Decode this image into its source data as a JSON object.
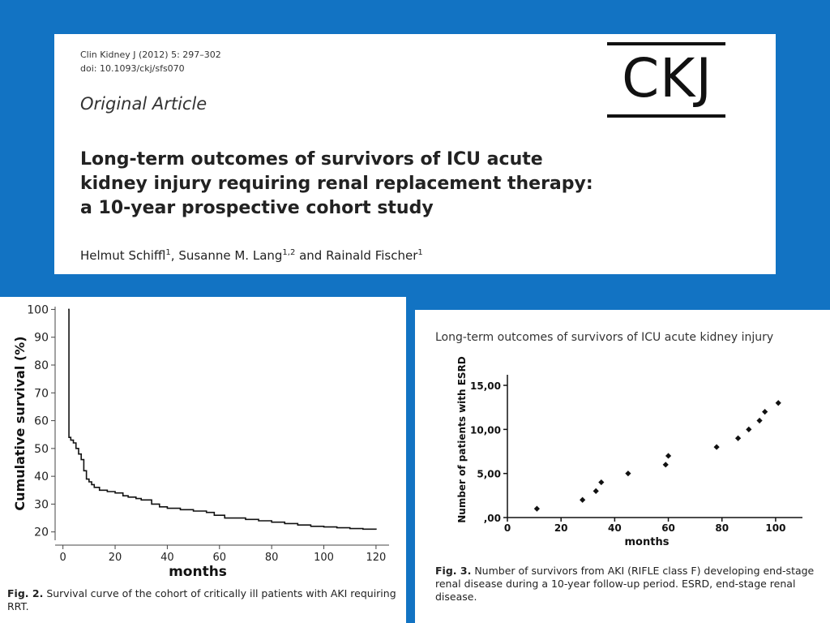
{
  "header": {
    "citation_line1": "Clin Kidney J (2012) 5: 297–302",
    "citation_line2": "doi: 10.1093/ckj/sfs070",
    "article_type": "Original Article",
    "title": "Long-term outcomes of survivors of ICU acute kidney injury requiring renal replacement therapy: a 10-year prospective cohort study",
    "authors": [
      {
        "name": "Helmut Schiffl",
        "aff": "1"
      },
      {
        "name": "Susanne M. Lang",
        "aff": "1,2"
      },
      {
        "name": "Rainald Fischer",
        "aff": "1"
      }
    ],
    "author_sep1": ", ",
    "author_sep2": " and ",
    "logo_text": "CKJ"
  },
  "fig2": {
    "caption_label": "Fig. 2.",
    "caption_text": "Survival curve of the cohort of critically ill patients with AKI requiring RRT."
  },
  "fig3": {
    "running_head": "Long-term outcomes of survivors of ICU acute kidney injury",
    "caption_label": "Fig. 3.",
    "caption_text": "Number of survivors from AKI (RIFLE class F) developing end-stage renal disease during a 10-year follow-up period. ESRD, end-stage renal disease."
  },
  "chart_data": [
    {
      "type": "line",
      "xlabel": "months",
      "ylabel": "Cumulative survival (%)",
      "xlim": [
        -3,
        125
      ],
      "ylim": [
        17,
        101
      ],
      "x_ticks": [
        "0",
        "20",
        "40",
        "60",
        "80",
        "100",
        "120"
      ],
      "y_ticks": [
        "20",
        "30",
        "40",
        "50",
        "60",
        "70",
        "80",
        "90",
        "100"
      ],
      "line_color": "#111111",
      "step": true,
      "x": [
        2,
        2.3,
        3,
        4,
        5,
        6,
        7,
        8,
        9,
        10,
        11,
        12,
        14,
        17,
        20,
        23,
        25,
        28,
        30,
        34,
        37,
        40,
        45,
        50,
        55,
        58,
        62,
        65,
        70,
        75,
        80,
        85,
        90,
        95,
        100,
        105,
        110,
        115,
        120
      ],
      "y": [
        100,
        54,
        53,
        52,
        50,
        48,
        46,
        42,
        39,
        38,
        37,
        36,
        35,
        34.5,
        34,
        33,
        32.5,
        32,
        31.5,
        30,
        29,
        28.5,
        28,
        27.5,
        27,
        26,
        25,
        25,
        24.5,
        24,
        23.5,
        23,
        22.5,
        22,
        21.8,
        21.5,
        21.2,
        21,
        20.8
      ]
    },
    {
      "type": "scatter",
      "xlabel": "months",
      "ylabel": "Number of patients with ESRD",
      "xlim": [
        0,
        110
      ],
      "ylim": [
        0,
        16.2
      ],
      "x_ticks": [
        "0",
        "20",
        "40",
        "60",
        "80",
        "100"
      ],
      "y_ticks": [
        ",00",
        "5,00",
        "10,00",
        "15,00"
      ],
      "marker_color": "#111111",
      "points": [
        {
          "x": 11,
          "y": 1
        },
        {
          "x": 28,
          "y": 2
        },
        {
          "x": 33,
          "y": 3
        },
        {
          "x": 35,
          "y": 4
        },
        {
          "x": 45,
          "y": 5
        },
        {
          "x": 59,
          "y": 6
        },
        {
          "x": 60,
          "y": 7
        },
        {
          "x": 78,
          "y": 8
        },
        {
          "x": 86,
          "y": 9
        },
        {
          "x": 90,
          "y": 10
        },
        {
          "x": 94,
          "y": 11
        },
        {
          "x": 96,
          "y": 12
        },
        {
          "x": 101,
          "y": 13
        }
      ]
    }
  ]
}
